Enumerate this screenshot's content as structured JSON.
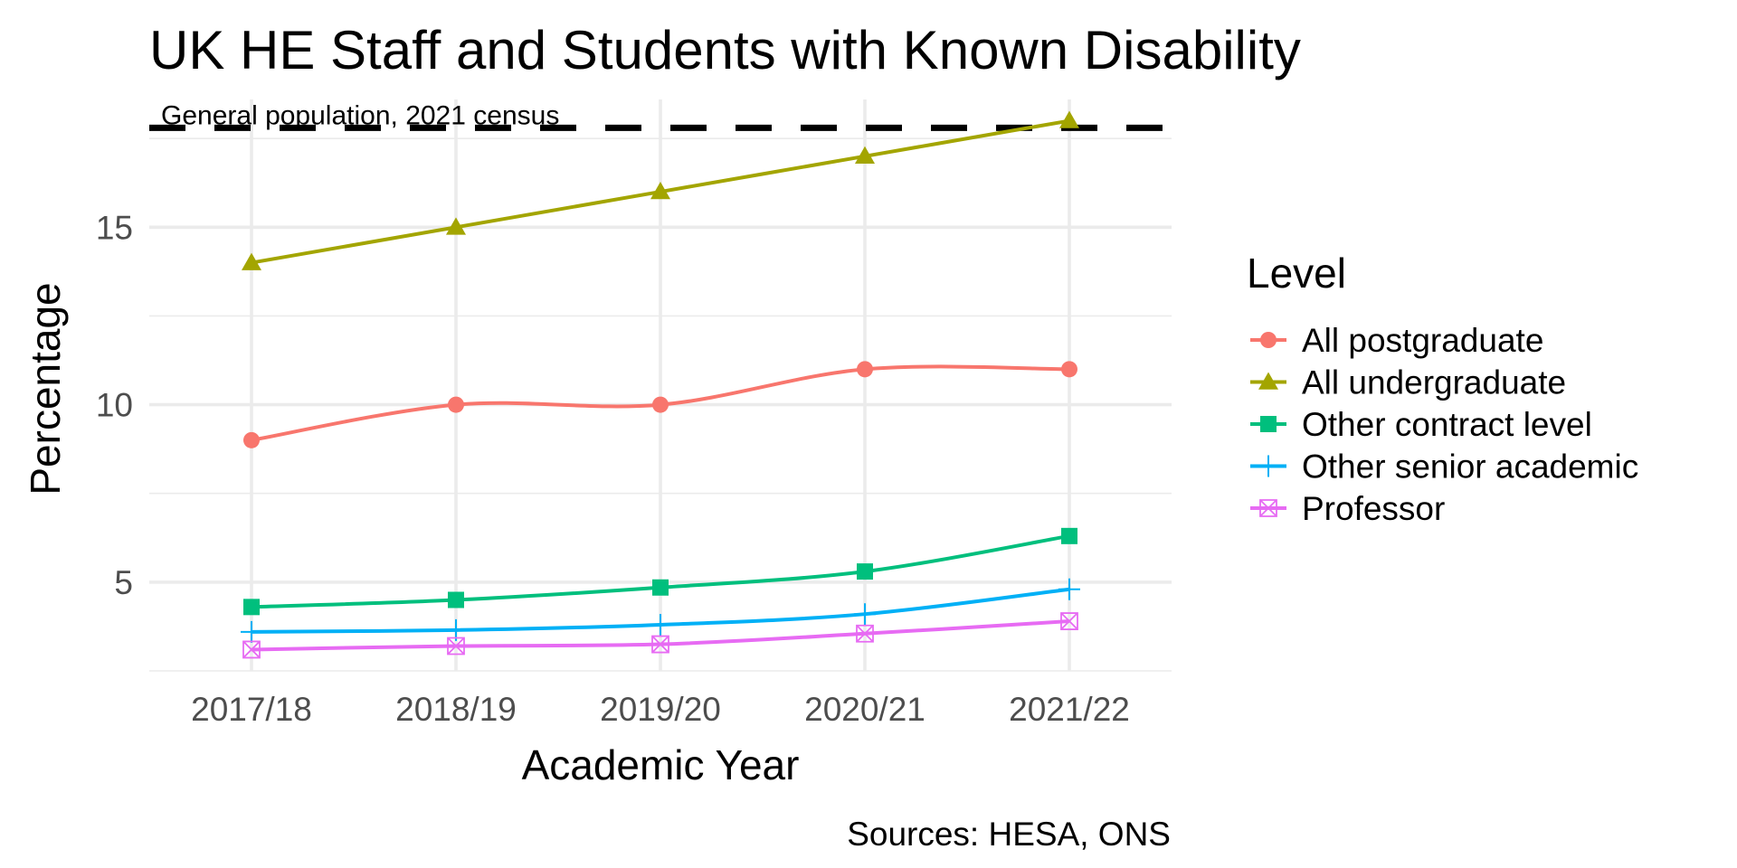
{
  "chart_data": {
    "type": "line",
    "title": "UK HE Staff and Students with Known Disability",
    "xlabel": "Academic Year",
    "ylabel": "Percentage",
    "caption": "Sources: HESA, ONS",
    "categories": [
      "2017/18",
      "2018/19",
      "2019/20",
      "2020/21",
      "2021/22"
    ],
    "ylim": [
      2.5,
      18.6
    ],
    "y_ticks": [
      5,
      10,
      15
    ],
    "y_minor_ticks": [
      2.5,
      7.5,
      12.5,
      17.5
    ],
    "grid": true,
    "legend": {
      "title": "Level",
      "position": "right"
    },
    "reference_line": {
      "label": "General population, 2021 census",
      "value": 17.8,
      "style": "dashed",
      "color": "#000000"
    },
    "series": [
      {
        "name": "All postgraduate",
        "color": "#F8766D",
        "marker": "circle",
        "values": [
          9,
          10,
          10,
          11,
          11
        ]
      },
      {
        "name": "All undergraduate",
        "color": "#A3A500",
        "marker": "triangle",
        "values": [
          14,
          15,
          16,
          17,
          18
        ]
      },
      {
        "name": "Other contract level",
        "color": "#00BF7D",
        "marker": "square",
        "values": [
          4.3,
          4.5,
          4.85,
          5.3,
          6.3
        ]
      },
      {
        "name": "Other senior academic",
        "color": "#00B0F6",
        "marker": "plus",
        "values": [
          3.6,
          3.65,
          3.8,
          4.1,
          4.8
        ]
      },
      {
        "name": "Professor",
        "color": "#E76BF3",
        "marker": "boxx",
        "values": [
          3.1,
          3.2,
          3.25,
          3.55,
          3.9
        ]
      }
    ]
  }
}
